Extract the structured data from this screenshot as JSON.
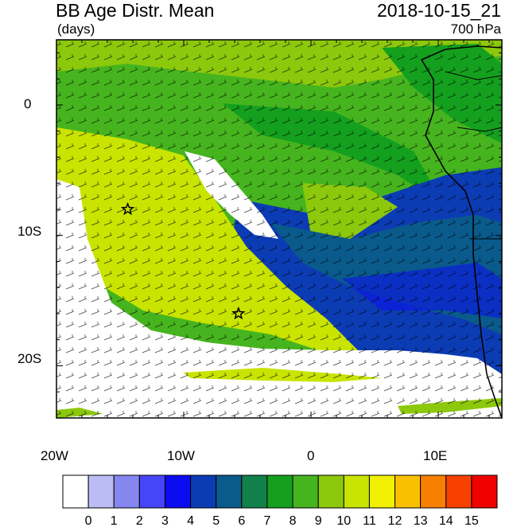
{
  "header": {
    "title": "BB Age Distr. Mean",
    "units": "(days)",
    "datetime": "2018-10-15_21",
    "level": "700 hPa"
  },
  "map": {
    "lat_labels": [
      "0",
      "10S",
      "20S"
    ],
    "lon_labels": [
      "20W",
      "10W",
      "0",
      "10E"
    ],
    "markers": [
      {
        "name": "star-marker-1",
        "lon": -14.4,
        "lat": -8.0
      },
      {
        "name": "star-marker-2",
        "lon": -5.7,
        "lat": -16.0
      }
    ],
    "extent": {
      "lon": [
        -20,
        15
      ],
      "lat": [
        -24,
        5
      ]
    }
  },
  "colorbar": {
    "labels": [
      "0",
      "1",
      "2",
      "3",
      "4",
      "5",
      "6",
      "7",
      "8",
      "9",
      "10",
      "11",
      "12",
      "13",
      "14",
      "15"
    ],
    "colors": [
      "#ffffff",
      "#bcbcf4",
      "#8686f0",
      "#4646f8",
      "#0c0cf0",
      "#0c3cb4",
      "#0a5a8c",
      "#12804a",
      "#14a01e",
      "#46b41e",
      "#8cc80c",
      "#c8e400",
      "#f0f000",
      "#f8c000",
      "#f88000",
      "#f84000",
      "#f00000"
    ]
  }
}
